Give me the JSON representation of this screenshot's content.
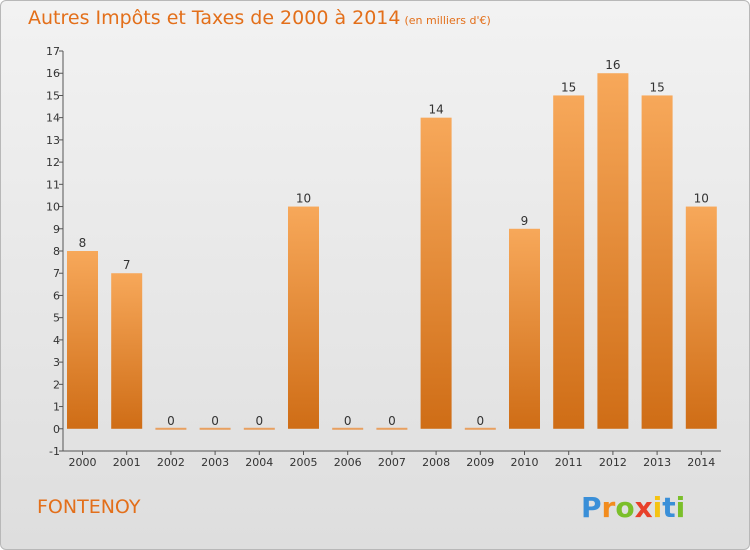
{
  "header": {
    "title": "Autres Impôts et Taxes de 2000 à 2014",
    "subtitle": "(en milliers d'€)"
  },
  "footer": {
    "place": "FONTENOY",
    "logo_letters": [
      "P",
      "r",
      "o",
      "x",
      "i",
      "t",
      "i"
    ],
    "logo_colors": [
      "#3a8fd8",
      "#f28c1e",
      "#7bbf2a",
      "#e8402a",
      "#f5c312",
      "#3a8fd8",
      "#7bbf2a"
    ]
  },
  "chart_data": {
    "type": "bar",
    "categories": [
      "2000",
      "2001",
      "2002",
      "2003",
      "2004",
      "2005",
      "2006",
      "2007",
      "2008",
      "2009",
      "2010",
      "2011",
      "2012",
      "2013",
      "2014"
    ],
    "values": [
      8,
      7,
      0,
      0,
      0,
      10,
      0,
      0,
      14,
      0,
      9,
      15,
      16,
      15,
      10
    ],
    "data_labels": [
      "8",
      "7",
      "0",
      "0",
      "0",
      "10",
      "0",
      "0",
      "14",
      "0",
      "9",
      "15",
      "16",
      "15",
      "10"
    ],
    "ylim": [
      -1,
      17
    ],
    "yticks": [
      -1,
      0,
      1,
      2,
      3,
      4,
      5,
      6,
      7,
      8,
      9,
      10,
      11,
      12,
      13,
      14,
      15,
      16,
      17
    ],
    "grid": false,
    "bar_color": "#f0923a"
  }
}
